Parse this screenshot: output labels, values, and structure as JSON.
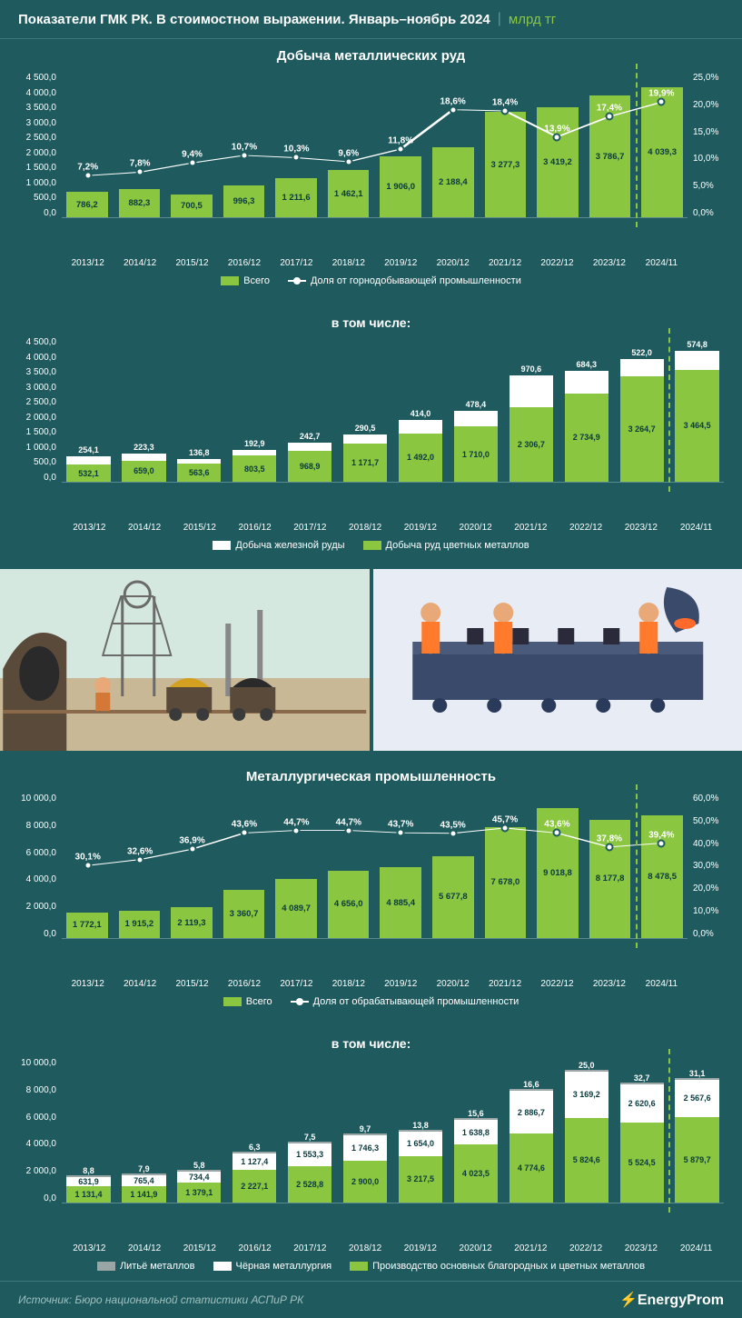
{
  "header": {
    "title": "Показатели ГМК РК. В стоимостном выражении. Январь–ноябрь 2024",
    "unit": "млрд тг"
  },
  "colors": {
    "bar_green": "#8ac640",
    "white": "#ffffff",
    "grey": "#9aa5a5",
    "bg": "#1e5a5e",
    "dark_text": "#0a3a3e"
  },
  "chart1": {
    "title": "Добыча металлических руд",
    "type": "bar+line",
    "ylim": [
      0,
      4500
    ],
    "y_ticks": [
      "4 500,0",
      "4 000,0",
      "3 500,0",
      "3 000,0",
      "2 500,0",
      "2 000,0",
      "1 500,0",
      "1 000,0",
      "500,0",
      "0,0"
    ],
    "y2lim": [
      0,
      25
    ],
    "y2_ticks": [
      "25,0%",
      "20,0%",
      "15,0%",
      "10,0%",
      "5,0%",
      "0,0%"
    ],
    "categories": [
      "2013/12",
      "2014/12",
      "2015/12",
      "2016/12",
      "2017/12",
      "2018/12",
      "2019/12",
      "2020/12",
      "2021/12",
      "2022/12",
      "2023/12",
      "2024/11"
    ],
    "bars": [
      786.2,
      882.3,
      700.5,
      996.3,
      1211.6,
      1462.1,
      1906.0,
      2188.4,
      3277.3,
      3419.2,
      3786.7,
      4039.3
    ],
    "bar_labels": [
      "786,2",
      "882,3",
      "700,5",
      "996,3",
      "1 211,6",
      "1 462,1",
      "1 906,0",
      "2 188,4",
      "3 277,3",
      "3 419,2",
      "3 786,7",
      "4 039,3"
    ],
    "line": [
      7.2,
      7.8,
      9.4,
      10.7,
      10.3,
      9.6,
      11.8,
      18.6,
      18.4,
      13.9,
      17.4,
      19.9
    ],
    "line_labels": [
      "7,2%",
      "7,8%",
      "9,4%",
      "10,7%",
      "10,3%",
      "9,6%",
      "11,8%",
      "18,6%",
      "18,4%",
      "13,9%",
      "17,4%",
      "19,9%"
    ],
    "legend": {
      "bar": "Всего",
      "line": "Доля от горнодобывающей промышленности"
    }
  },
  "chart2": {
    "title": "в том числе:",
    "type": "stacked-bar",
    "ylim": [
      0,
      4500
    ],
    "y_ticks": [
      "4 500,0",
      "4 000,0",
      "3 500,0",
      "3 000,0",
      "2 500,0",
      "2 000,0",
      "1 500,0",
      "1 000,0",
      "500,0",
      "0,0"
    ],
    "categories": [
      "2013/12",
      "2014/12",
      "2015/12",
      "2016/12",
      "2017/12",
      "2018/12",
      "2019/12",
      "2020/12",
      "2021/12",
      "2022/12",
      "2023/12",
      "2024/11"
    ],
    "series_a": {
      "name": "Добыча железной руды",
      "color": "#ffffff",
      "values": [
        254.1,
        223.3,
        136.8,
        192.9,
        242.7,
        290.5,
        414.0,
        478.4,
        970.6,
        684.3,
        522.0,
        574.8
      ],
      "labels": [
        "254,1",
        "223,3",
        "136,8",
        "192,9",
        "242,7",
        "290,5",
        "414,0",
        "478,4",
        "970,6",
        "684,3",
        "522,0",
        "574,8"
      ]
    },
    "series_b": {
      "name": "Добыча руд цветных металлов",
      "color": "#8ac640",
      "values": [
        532.1,
        659.0,
        563.6,
        803.5,
        968.9,
        1171.7,
        1492.0,
        1710.0,
        2306.7,
        2734.9,
        3264.7,
        3464.5
      ],
      "labels": [
        "532,1",
        "659,0",
        "563,6",
        "803,5",
        "968,9",
        "1 171,7",
        "1 492,0",
        "1 710,0",
        "2 306,7",
        "2 734,9",
        "3 264,7",
        "3 464,5"
      ]
    }
  },
  "chart3": {
    "title": "Металлургическая промышленность",
    "type": "bar+line",
    "ylim": [
      0,
      10000
    ],
    "y_ticks": [
      "10 000,0",
      "8 000,0",
      "6 000,0",
      "4 000,0",
      "2 000,0",
      "0,0"
    ],
    "y2lim": [
      0,
      60
    ],
    "y2_ticks": [
      "60,0%",
      "50,0%",
      "40,0%",
      "30,0%",
      "20,0%",
      "10,0%",
      "0,0%"
    ],
    "categories": [
      "2013/12",
      "2014/12",
      "2015/12",
      "2016/12",
      "2017/12",
      "2018/12",
      "2019/12",
      "2020/12",
      "2021/12",
      "2022/12",
      "2023/12",
      "2024/11"
    ],
    "bars": [
      1772.1,
      1915.2,
      2119.3,
      3360.7,
      4089.7,
      4656.0,
      4885.4,
      5677.8,
      7678.0,
      9018.8,
      8177.8,
      8478.5
    ],
    "bar_labels": [
      "1 772,1",
      "1 915,2",
      "2 119,3",
      "3 360,7",
      "4 089,7",
      "4 656,0",
      "4 885,4",
      "5 677,8",
      "7 678,0",
      "9 018,8",
      "8 177,8",
      "8 478,5"
    ],
    "line": [
      30.1,
      32.6,
      36.9,
      43.6,
      44.7,
      44.7,
      43.7,
      43.5,
      45.7,
      43.6,
      37.8,
      39.4
    ],
    "line_labels": [
      "30,1%",
      "32,6%",
      "36,9%",
      "43,6%",
      "44,7%",
      "44,7%",
      "43,7%",
      "43,5%",
      "45,7%",
      "43,6%",
      "37,8%",
      "39,4%"
    ],
    "legend": {
      "bar": "Всего",
      "line": "Доля от обрабатывающей промышленности"
    }
  },
  "chart4": {
    "title": "в том числе:",
    "type": "stacked-bar-3",
    "ylim": [
      0,
      10000
    ],
    "y_ticks": [
      "10 000,0",
      "8 000,0",
      "6 000,0",
      "4 000,0",
      "2 000,0",
      "0,0"
    ],
    "categories": [
      "2013/12",
      "2014/12",
      "2015/12",
      "2016/12",
      "2017/12",
      "2018/12",
      "2019/12",
      "2020/12",
      "2021/12",
      "2022/12",
      "2023/12",
      "2024/11"
    ],
    "s1": {
      "name": "Литьё металлов",
      "color": "#9aa5a5",
      "values": [
        8.8,
        7.9,
        5.8,
        6.3,
        7.5,
        9.7,
        13.8,
        15.6,
        16.6,
        25.0,
        32.7,
        31.1
      ],
      "labels": [
        "8,8",
        "7,9",
        "5,8",
        "6,3",
        "7,5",
        "9,7",
        "13,8",
        "15,6",
        "16,6",
        "25,0",
        "32,7",
        "31,1"
      ]
    },
    "s2": {
      "name": "Чёрная металлургия",
      "color": "#ffffff",
      "values": [
        631.9,
        765.4,
        734.4,
        1127.4,
        1553.3,
        1746.3,
        1654.0,
        1638.8,
        2886.7,
        3169.2,
        2620.6,
        2567.6
      ],
      "labels": [
        "631,9",
        "765,4",
        "734,4",
        "1 127,4",
        "1 553,3",
        "1 746,3",
        "1 654,0",
        "1 638,8",
        "2 886,7",
        "3 169,2",
        "2 620,6",
        "2 567,6"
      ]
    },
    "s3": {
      "name": "Производство основных благородных и цветных металлов",
      "color": "#8ac640",
      "values": [
        1131.4,
        1141.9,
        1379.1,
        2227.1,
        2528.8,
        2900.0,
        3217.5,
        4023.5,
        4774.6,
        5824.6,
        5524.5,
        5879.7
      ],
      "labels": [
        "1 131,4",
        "1 141,9",
        "1 379,1",
        "2 227,1",
        "2 528,8",
        "2 900,0",
        "3 217,5",
        "4 023,5",
        "4 774,6",
        "5 824,6",
        "5 524,5",
        "5 879,7"
      ]
    }
  },
  "footer": {
    "source": "Источник: Бюро национальной статистики АСПиР РК",
    "brand": "EnergyProm"
  }
}
